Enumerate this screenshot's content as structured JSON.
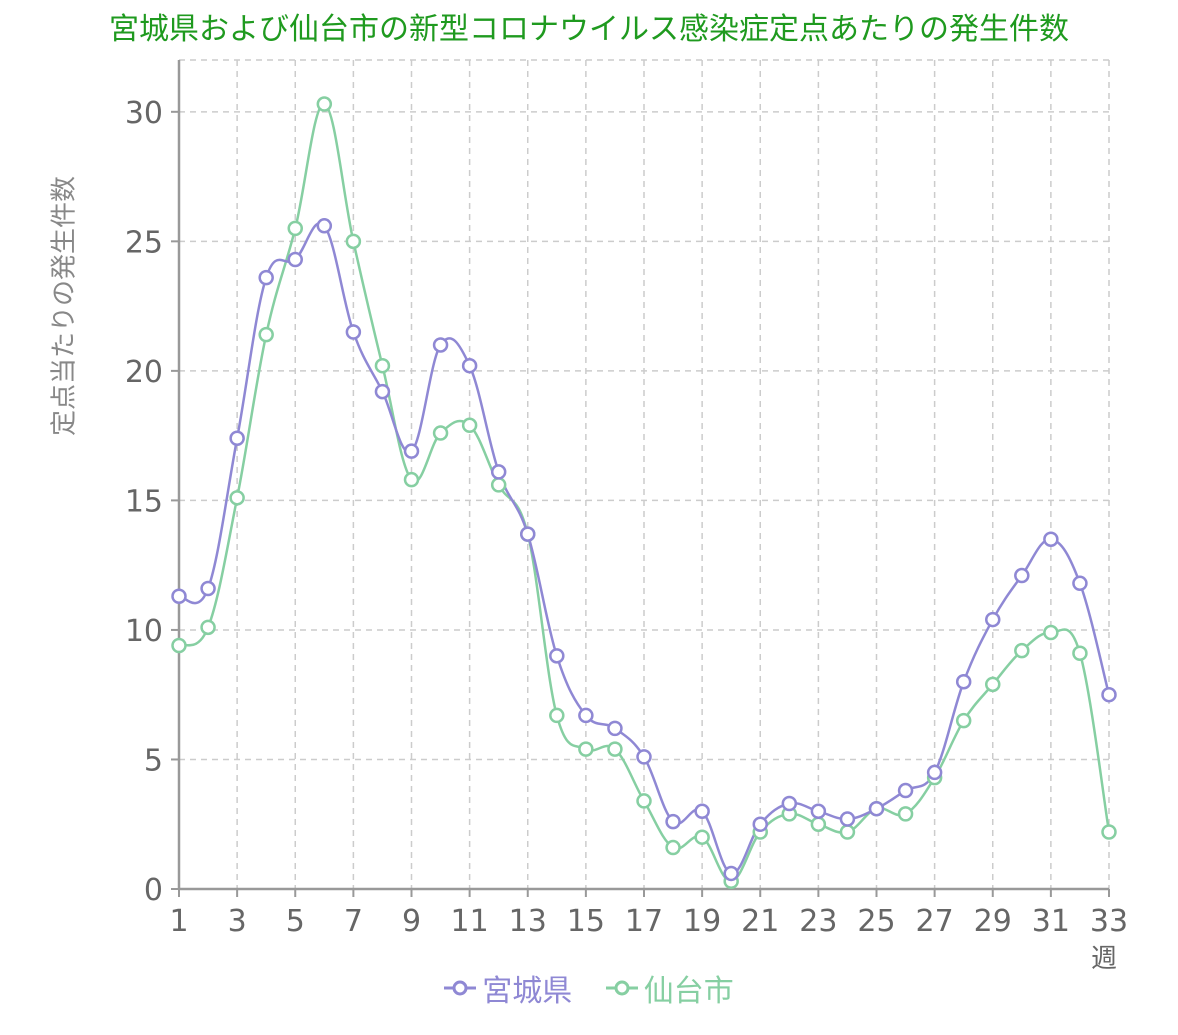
{
  "chart_data": {
    "type": "line",
    "title": "宮城県および仙台市の新型コロナウイルス感染症定点あたりの発生件数",
    "ylabel": "定点当たりの発生件数",
    "xlabel": "週",
    "x": [
      1,
      2,
      3,
      4,
      5,
      6,
      7,
      8,
      9,
      10,
      11,
      12,
      13,
      14,
      15,
      16,
      17,
      18,
      19,
      20,
      21,
      22,
      23,
      24,
      25,
      26,
      27,
      28,
      29,
      30,
      31,
      32,
      33
    ],
    "x_tick_labels": [
      "1",
      "3",
      "5",
      "7",
      "9",
      "11",
      "13",
      "15",
      "17",
      "19",
      "21",
      "23",
      "25",
      "27",
      "29",
      "31",
      "33"
    ],
    "y_tick_labels": [
      "0",
      "5",
      "10",
      "15",
      "20",
      "25",
      "30"
    ],
    "ylim": [
      0,
      32
    ],
    "xlim": [
      1,
      33
    ],
    "grid": true,
    "legend_position": "bottom",
    "series": [
      {
        "name": "宮城県",
        "color": "#8f88d4",
        "values": [
          11.3,
          11.6,
          17.4,
          23.6,
          24.3,
          25.6,
          21.5,
          19.2,
          16.9,
          21.0,
          20.2,
          16.1,
          13.7,
          9.0,
          6.7,
          6.2,
          5.1,
          2.6,
          3.0,
          0.6,
          2.5,
          3.3,
          3.0,
          2.7,
          3.1,
          3.8,
          4.5,
          8.0,
          10.4,
          12.1,
          13.5,
          11.8,
          7.5
        ]
      },
      {
        "name": "仙台市",
        "color": "#86cfa2",
        "values": [
          9.4,
          10.1,
          15.1,
          21.4,
          25.5,
          30.3,
          25.0,
          20.2,
          15.8,
          17.6,
          17.9,
          15.6,
          13.7,
          6.7,
          5.4,
          5.4,
          3.4,
          1.6,
          2.0,
          0.3,
          2.2,
          2.9,
          2.5,
          2.2,
          3.1,
          2.9,
          4.3,
          6.5,
          7.9,
          9.2,
          9.9,
          9.1,
          2.2
        ]
      }
    ]
  }
}
